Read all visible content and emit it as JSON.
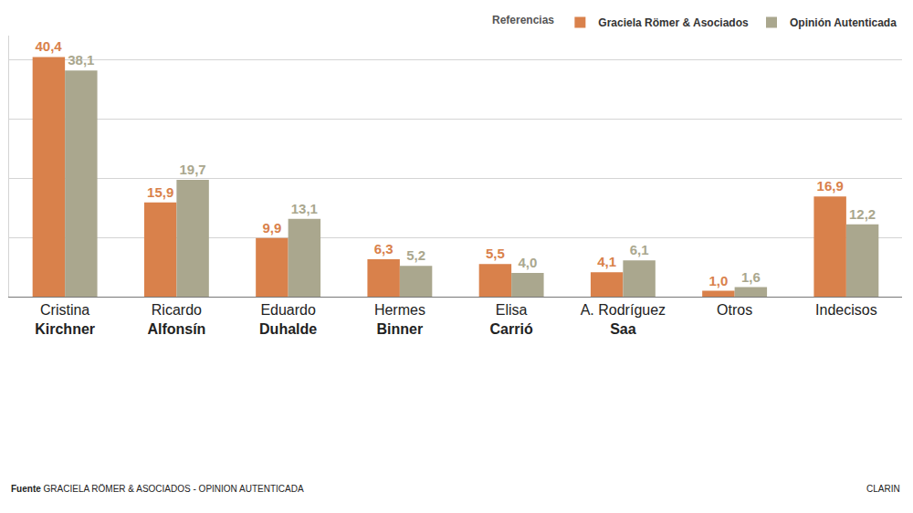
{
  "chart_data": {
    "type": "bar",
    "categories": [
      "Cristina Kirchner",
      "Ricardo Alfonsín",
      "Eduardo Duhalde",
      "Hermes Binner",
      "Elisa Carrió",
      "A. Rodríguez Saa",
      "Otros",
      "Indecisos"
    ],
    "series": [
      {
        "name": "Graciela Römer & Asociados",
        "color": "#d9814b",
        "values": [
          40.4,
          15.9,
          9.9,
          6.3,
          5.5,
          4.1,
          1.0,
          16.9
        ],
        "value_labels": [
          "40,4",
          "15,9",
          "9,9",
          "6,3",
          "5,5",
          "4,1",
          "1,0",
          "16,9"
        ]
      },
      {
        "name": "Opinión Autenticada",
        "color": "#aaa78e",
        "values": [
          38.1,
          19.7,
          13.1,
          5.2,
          4.0,
          6.1,
          1.6,
          12.2
        ],
        "value_labels": [
          "38,1",
          "19,7",
          "13,1",
          "5,2",
          "4,0",
          "6,1",
          "1,6",
          "12,2"
        ]
      }
    ],
    "legend_title": "Referencias",
    "legend": "top right",
    "ylim": [
      0,
      44
    ],
    "yticks": [
      0,
      10,
      20,
      30,
      40
    ],
    "grid": true,
    "tick_labels": "x",
    "data_labels": true,
    "source": {
      "label": "Fuente",
      "text": "GRACIELA RÖMER & ASOCIADOS - OPINION AUTENTICADA"
    },
    "credit": "CLARIN"
  }
}
